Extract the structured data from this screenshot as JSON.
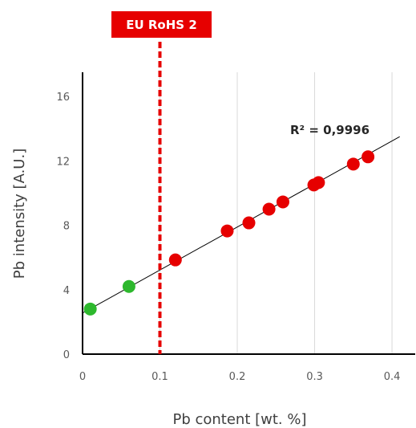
{
  "chart_data": {
    "type": "scatter",
    "xlabel": "Pb content [wt. %]",
    "ylabel": "Pb intensity [A.U.]",
    "xlim": [
      0,
      0.43
    ],
    "ylim": [
      0,
      17.5
    ],
    "xticks": [
      0,
      0.1,
      0.2,
      0.3,
      0.4
    ],
    "xtick_labels": [
      "0",
      "0.1",
      "0.2",
      "0.3",
      "0.4"
    ],
    "yticks": [
      0,
      4,
      8,
      12,
      16
    ],
    "ytick_labels": [
      "0",
      "4",
      "8",
      "12",
      "16"
    ],
    "grid": "vertical",
    "series": [
      {
        "color": "#2db82d",
        "x": [
          0.01,
          0.06
        ],
        "y": [
          2.8,
          4.2
        ]
      },
      {
        "color": "#e60000",
        "x": [
          0.12,
          0.187,
          0.215,
          0.241,
          0.259,
          0.299,
          0.305,
          0.35,
          0.369
        ],
        "y": [
          5.85,
          7.65,
          8.15,
          9.0,
          9.45,
          10.5,
          10.65,
          11.8,
          12.25
        ]
      }
    ],
    "trendline": {
      "x": [
        0,
        0.41
      ],
      "y": [
        2.55,
        13.5
      ],
      "color": "#000000"
    },
    "annotation_r2": "R² = 0,9996",
    "threshold": {
      "x": 0.1,
      "label": "EU RoHS 2",
      "color": "#e60000"
    }
  }
}
